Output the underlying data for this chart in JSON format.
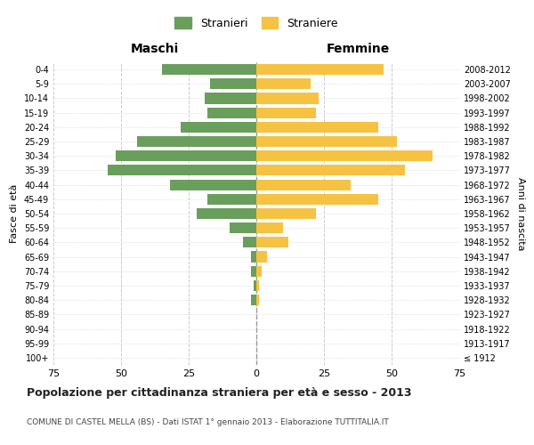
{
  "age_groups": [
    "100+",
    "95-99",
    "90-94",
    "85-89",
    "80-84",
    "75-79",
    "70-74",
    "65-69",
    "60-64",
    "55-59",
    "50-54",
    "45-49",
    "40-44",
    "35-39",
    "30-34",
    "25-29",
    "20-24",
    "15-19",
    "10-14",
    "5-9",
    "0-4"
  ],
  "birth_years": [
    "≤ 1912",
    "1913-1917",
    "1918-1922",
    "1923-1927",
    "1928-1932",
    "1933-1937",
    "1938-1942",
    "1943-1947",
    "1948-1952",
    "1953-1957",
    "1958-1962",
    "1963-1967",
    "1968-1972",
    "1973-1977",
    "1978-1982",
    "1983-1987",
    "1988-1992",
    "1993-1997",
    "1998-2002",
    "2003-2007",
    "2008-2012"
  ],
  "males": [
    0,
    0,
    0,
    0,
    2,
    1,
    2,
    2,
    5,
    10,
    22,
    18,
    32,
    55,
    52,
    44,
    28,
    18,
    19,
    17,
    35
  ],
  "females": [
    0,
    0,
    0,
    0,
    1,
    1,
    2,
    4,
    12,
    10,
    22,
    45,
    35,
    55,
    65,
    52,
    45,
    22,
    23,
    20,
    47
  ],
  "male_color": "#6a9e5c",
  "female_color": "#f5c242",
  "background_color": "#ffffff",
  "grid_color": "#cccccc",
  "xlim": 75,
  "title": "Popolazione per cittadinanza straniera per età e sesso - 2013",
  "subtitle": "COMUNE DI CASTEL MELLA (BS) - Dati ISTAT 1° gennaio 2013 - Elaborazione TUTTITALIA.IT",
  "xlabel_left": "Maschi",
  "xlabel_right": "Femmine",
  "ylabel_left": "Fasce di età",
  "ylabel_right": "Anni di nascita",
  "legend_male": "Stranieri",
  "legend_female": "Straniere",
  "tick_values": [
    -75,
    -50,
    -25,
    0,
    25,
    50,
    75
  ]
}
